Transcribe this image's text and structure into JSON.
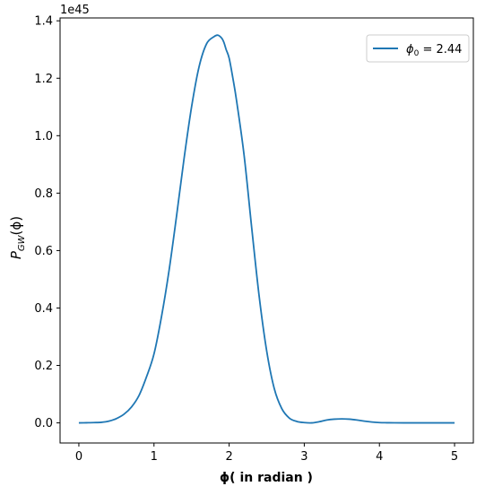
{
  "chart_data": {
    "type": "line",
    "xlabel": "ϕ( in radian )",
    "ylabel": "P_GW(ϕ)",
    "ylabel_main": "P",
    "ylabel_sub": "GW",
    "ylabel_tail": "(ϕ)",
    "offset_text": "1e45",
    "xlim": [
      -0.25,
      5.25
    ],
    "ylim": [
      -0.07,
      1.41
    ],
    "x_ticks": [
      0,
      1,
      2,
      3,
      4,
      5
    ],
    "x_tick_labels": [
      "0",
      "1",
      "2",
      "3",
      "4",
      "5"
    ],
    "y_ticks": [
      0.0,
      0.2,
      0.4,
      0.6,
      0.8,
      1.0,
      1.2,
      1.4
    ],
    "y_tick_labels": [
      "0.0",
      "0.2",
      "0.4",
      "0.6",
      "0.8",
      "1.0",
      "1.2",
      "1.4"
    ],
    "grid": false,
    "legend_position": "top-right",
    "series": [
      {
        "name": "ϕ₀ = 2.44",
        "legend_math": "ϕ",
        "legend_sub": "0",
        "legend_value": " = 2.44",
        "color": "#1f77b4",
        "x": [
          0.0,
          0.1,
          0.2,
          0.3,
          0.4,
          0.5,
          0.6,
          0.7,
          0.8,
          0.9,
          1.0,
          1.1,
          1.2,
          1.3,
          1.4,
          1.5,
          1.6,
          1.7,
          1.8,
          1.85,
          1.9,
          1.93,
          1.96,
          2.0,
          2.05,
          2.1,
          2.2,
          2.3,
          2.4,
          2.5,
          2.6,
          2.7,
          2.8,
          2.9,
          3.0,
          3.1,
          3.2,
          3.3,
          3.4,
          3.5,
          3.6,
          3.7,
          3.8,
          3.9,
          4.0,
          4.1,
          4.2,
          4.4,
          4.6,
          4.8,
          5.0
        ],
        "y": [
          0.0,
          0.0005,
          0.001,
          0.002,
          0.006,
          0.015,
          0.03,
          0.055,
          0.095,
          0.16,
          0.24,
          0.37,
          0.53,
          0.72,
          0.92,
          1.1,
          1.24,
          1.32,
          1.345,
          1.35,
          1.34,
          1.325,
          1.3,
          1.27,
          1.2,
          1.12,
          0.93,
          0.68,
          0.44,
          0.25,
          0.12,
          0.05,
          0.017,
          0.005,
          0.001,
          0.0,
          0.004,
          0.01,
          0.013,
          0.014,
          0.013,
          0.01,
          0.006,
          0.003,
          0.001,
          0.0005,
          0.0002,
          0.0001,
          0.0,
          0.0,
          0.0
        ]
      }
    ]
  }
}
